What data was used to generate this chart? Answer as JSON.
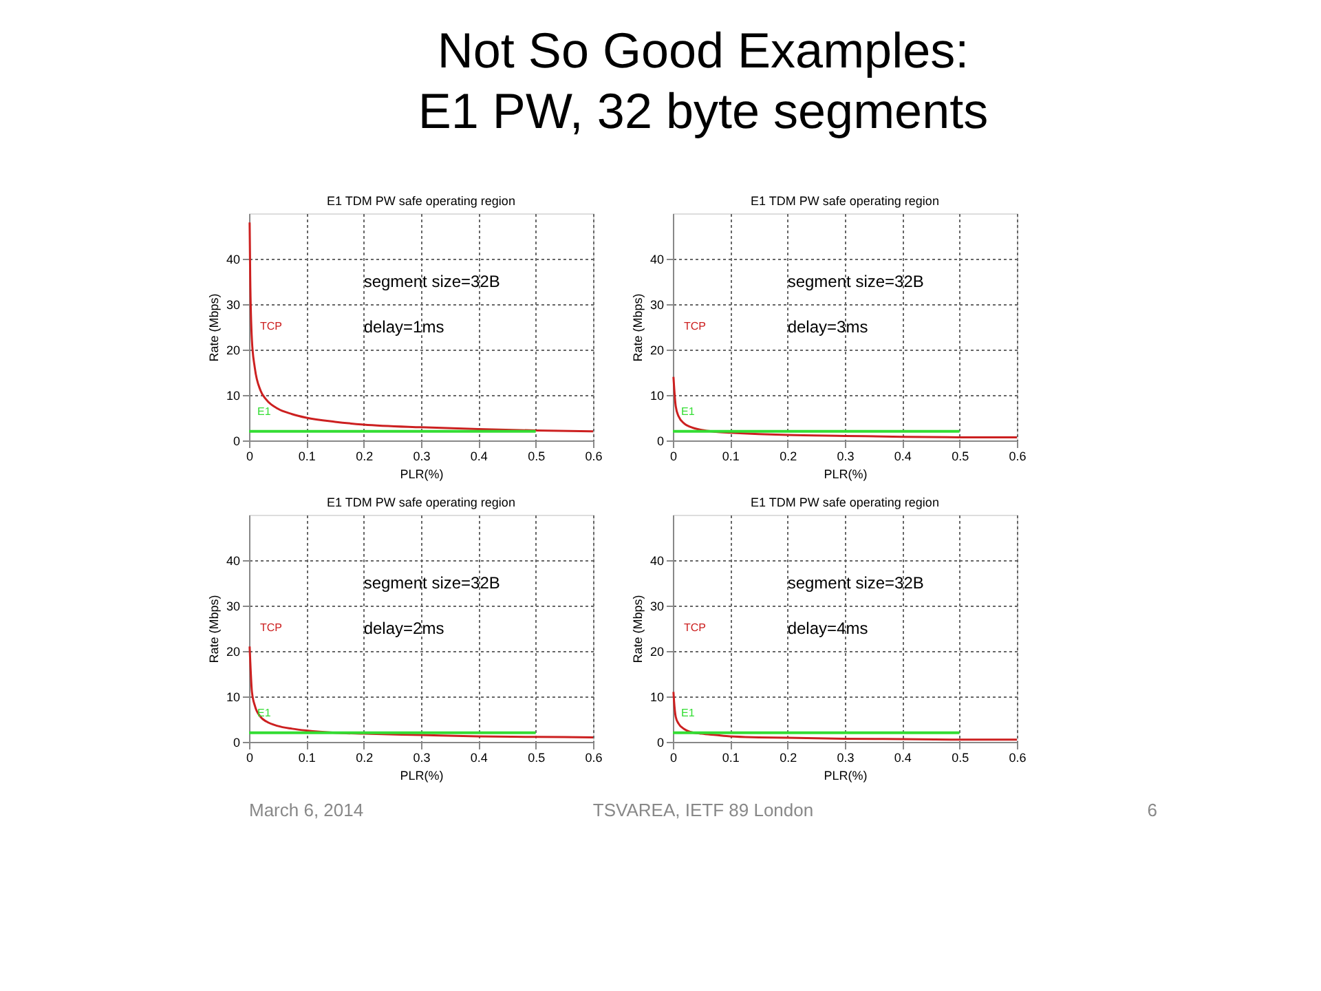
{
  "chart_data": [
    {
      "type": "other",
      "title": "Not So Good Examples:\nE1 PW, 32 byte segments",
      "annotations": [
        "March 6, 2014",
        "TSVAREA, IETF 89 London",
        "6"
      ]
    },
    {
      "type": "line",
      "title": "E1 TDM PW safe operating region",
      "xlabel": "PLR(%)",
      "ylabel": "Rate (Mbps)",
      "xlim": [
        0,
        0.6
      ],
      "xticks": [
        0,
        0.1,
        0.2,
        0.3,
        0.4,
        0.5,
        0.6
      ],
      "ylim": [
        0,
        50
      ],
      "yticks": [
        0,
        10,
        20,
        30,
        40
      ],
      "grid": true,
      "annotations": [
        "segment size=32B",
        "delay=1ms"
      ],
      "series": [
        {
          "name": "TCP",
          "color": "#cc2020",
          "x": [
            0.001,
            0.002,
            0.005,
            0.01,
            0.02,
            0.03,
            0.05,
            0.075,
            0.1,
            0.15,
            0.2,
            0.3,
            0.4,
            0.5,
            0.6
          ],
          "values": [
            48,
            36,
            22,
            16,
            11,
            9,
            7,
            5.8,
            5,
            4.1,
            3.5,
            2.9,
            2.5,
            2.2,
            2
          ]
        },
        {
          "name": "E1",
          "color": "#33dd33",
          "x": [
            0,
            0.5
          ],
          "values": [
            2,
            2
          ]
        }
      ]
    },
    {
      "type": "line",
      "title": "E1 TDM PW safe operating region",
      "xlabel": "PLR(%)",
      "ylabel": "Rate (Mbps)",
      "xlim": [
        0,
        0.6
      ],
      "xticks": [
        0,
        0.1,
        0.2,
        0.3,
        0.4,
        0.5,
        0.6
      ],
      "ylim": [
        0,
        50
      ],
      "yticks": [
        0,
        10,
        20,
        30,
        40
      ],
      "grid": true,
      "annotations": [
        "segment size=32B",
        "delay=3ms"
      ],
      "series": [
        {
          "name": "TCP",
          "color": "#cc2020",
          "x": [
            0.001,
            0.002,
            0.005,
            0.01,
            0.02,
            0.03,
            0.05,
            0.075,
            0.1,
            0.15,
            0.2,
            0.3,
            0.4,
            0.5,
            0.6
          ],
          "values": [
            14,
            12,
            7.5,
            5.3,
            3.7,
            3,
            2.3,
            1.9,
            1.7,
            1.4,
            1.2,
            1,
            0.8,
            0.7,
            0.7
          ]
        },
        {
          "name": "E1",
          "color": "#33dd33",
          "x": [
            0,
            0.5
          ],
          "values": [
            2,
            2
          ]
        }
      ]
    },
    {
      "type": "line",
      "title": "E1 TDM PW safe operating region",
      "xlabel": "PLR(%)",
      "ylabel": "Rate (Mbps)",
      "xlim": [
        0,
        0.6
      ],
      "xticks": [
        0,
        0.1,
        0.2,
        0.3,
        0.4,
        0.5,
        0.6
      ],
      "ylim": [
        0,
        50
      ],
      "yticks": [
        0,
        10,
        20,
        30,
        40
      ],
      "grid": true,
      "annotations": [
        "segment size=32B",
        "delay=2ms"
      ],
      "series": [
        {
          "name": "TCP",
          "color": "#cc2020",
          "x": [
            0.001,
            0.002,
            0.005,
            0.01,
            0.02,
            0.03,
            0.05,
            0.075,
            0.1,
            0.15,
            0.2,
            0.3,
            0.4,
            0.5,
            0.6
          ],
          "values": [
            21,
            18,
            11,
            8,
            5.5,
            4.5,
            3.5,
            2.9,
            2.5,
            2,
            1.8,
            1.5,
            1.2,
            1.1,
            1
          ]
        },
        {
          "name": "E1",
          "color": "#33dd33",
          "x": [
            0,
            0.5
          ],
          "values": [
            2,
            2
          ]
        }
      ]
    },
    {
      "type": "line",
      "title": "E1 TDM PW safe operating region",
      "xlabel": "PLR(%)",
      "ylabel": "Rate (Mbps)",
      "xlim": [
        0,
        0.6
      ],
      "xticks": [
        0,
        0.1,
        0.2,
        0.3,
        0.4,
        0.5,
        0.6
      ],
      "ylim": [
        0,
        50
      ],
      "yticks": [
        0,
        10,
        20,
        30,
        40
      ],
      "grid": true,
      "annotations": [
        "segment size=32B",
        "delay=4ms"
      ],
      "series": [
        {
          "name": "TCP",
          "color": "#cc2020",
          "x": [
            0.001,
            0.002,
            0.005,
            0.01,
            0.02,
            0.03,
            0.05,
            0.075,
            0.1,
            0.15,
            0.2,
            0.3,
            0.4,
            0.5,
            0.6
          ],
          "values": [
            11,
            9,
            5.5,
            4,
            2.8,
            2.2,
            1.8,
            1.5,
            1.2,
            1,
            0.9,
            0.7,
            0.6,
            0.5,
            0.5
          ]
        },
        {
          "name": "E1",
          "color": "#33dd33",
          "x": [
            0,
            0.5
          ],
          "values": [
            2,
            2
          ]
        }
      ]
    }
  ]
}
